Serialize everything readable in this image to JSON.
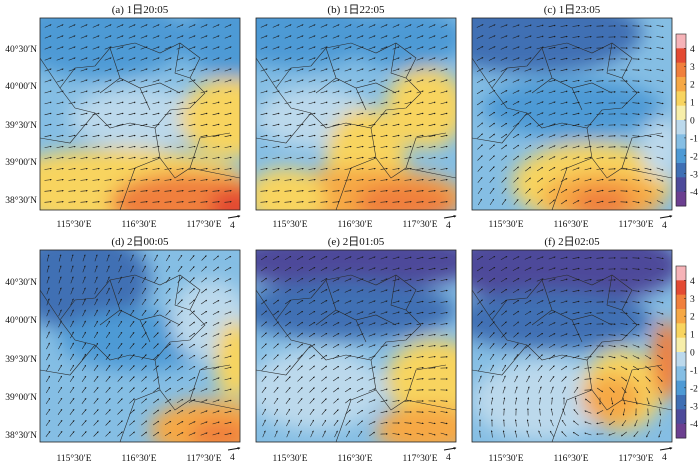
{
  "figure": {
    "panels": [
      {
        "id": "a",
        "title": "(a) 1日20:05",
        "show_y_labels": true
      },
      {
        "id": "b",
        "title": "(b) 1日22:05",
        "show_y_labels": false
      },
      {
        "id": "c",
        "title": "(c) 1日23:05",
        "show_y_labels": false
      },
      {
        "id": "d",
        "title": "(d) 2日00:05",
        "show_y_labels": true
      },
      {
        "id": "e",
        "title": "(e) 2日01:05",
        "show_y_labels": false
      },
      {
        "id": "f",
        "title": "(f) 2日02:05",
        "show_y_labels": false
      }
    ],
    "x_tick_labels": [
      "115°30′E",
      "116°30′E",
      "117°30′E"
    ],
    "y_tick_labels": [
      "40°30′N",
      "40°00′N",
      "39°30′N",
      "39°00′N",
      "38°30′N"
    ],
    "reference_vector_label": "4",
    "colorbar": {
      "tick_labels": [
        "4",
        "3",
        "2",
        "1",
        "0",
        "-1",
        "-2",
        "-3",
        "-4"
      ],
      "colors": [
        "#f6b3b8",
        "#e34a33",
        "#f07f3c",
        "#f6a845",
        "#f8d45f",
        "#f7eea9",
        "#bcd9ec",
        "#85bee4",
        "#4e9ad5",
        "#3f6fb4",
        "#4d4a9a",
        "#6b3f90"
      ]
    }
  }
}
